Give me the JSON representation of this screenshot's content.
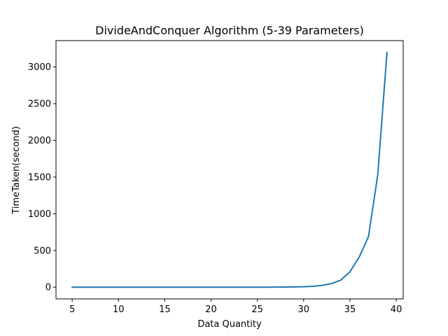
{
  "chart_data": {
    "type": "line",
    "title": "DivideAndConquer Algorithm (5-39 Parameters)",
    "xlabel": "Data Quantity",
    "ylabel": "TimeTaken(second)",
    "xlim": [
      3.25,
      40.75
    ],
    "ylim": [
      -160,
      3360
    ],
    "xticks": [
      5,
      10,
      15,
      20,
      25,
      30,
      35,
      40
    ],
    "yticks": [
      0,
      500,
      1000,
      1500,
      2000,
      2500,
      3000
    ],
    "grid": false,
    "legend": "none",
    "series": [
      {
        "color": "#1f77b4",
        "x": [
          5,
          6,
          7,
          8,
          9,
          10,
          11,
          12,
          13,
          14,
          15,
          16,
          17,
          18,
          19,
          20,
          21,
          22,
          23,
          24,
          25,
          26,
          27,
          28,
          29,
          30,
          31,
          32,
          33,
          34,
          35,
          36,
          37,
          38,
          39
        ],
        "values": [
          0,
          0,
          0,
          0,
          0,
          0,
          0,
          0,
          0,
          0,
          0,
          0,
          0,
          0,
          0,
          0,
          0,
          0,
          0,
          0.1,
          0.2,
          0.4,
          0.7,
          1.5,
          3,
          6,
          12,
          25,
          48,
          95,
          210,
          410,
          690,
          1530,
          3200
        ]
      }
    ]
  }
}
